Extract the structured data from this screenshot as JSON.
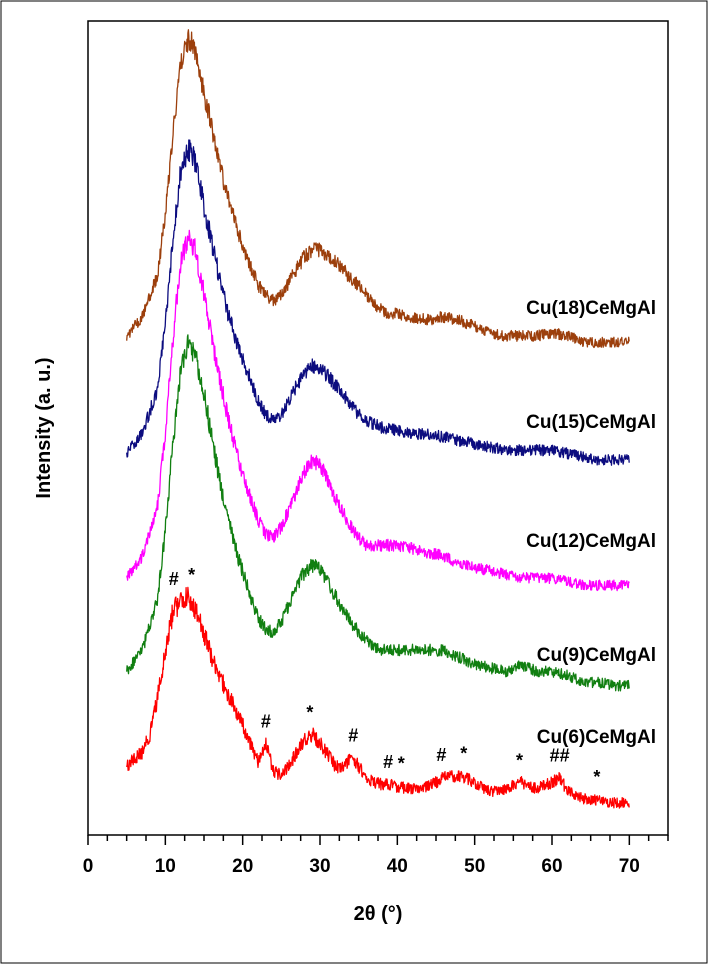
{
  "chart_data": {
    "type": "line",
    "title": "",
    "xlabel": "2θ (°)",
    "ylabel": "Intensity (a. u.)",
    "xlim": [
      0,
      75
    ],
    "x_ticks": [
      "0",
      "10",
      "20",
      "30",
      "40",
      "50",
      "60",
      "70"
    ],
    "y_ticks": "none",
    "grid": false,
    "legend": "none (series labelled directly on plot)",
    "series": [
      {
        "name": "Cu(18)CeMgAl",
        "color": "#9c3f0c",
        "points": [
          [
            5,
            0.06
          ],
          [
            7,
            0.12
          ],
          [
            9,
            0.25
          ],
          [
            10,
            0.45
          ],
          [
            11,
            0.7
          ],
          [
            12,
            0.92
          ],
          [
            13,
            1.0
          ],
          [
            14,
            0.95
          ],
          [
            15,
            0.82
          ],
          [
            16,
            0.72
          ],
          [
            17,
            0.6
          ],
          [
            18,
            0.5
          ],
          [
            19,
            0.42
          ],
          [
            20,
            0.34
          ],
          [
            21,
            0.28
          ],
          [
            22,
            0.22
          ],
          [
            23,
            0.19
          ],
          [
            24,
            0.17
          ],
          [
            25,
            0.19
          ],
          [
            26,
            0.23
          ],
          [
            27,
            0.27
          ],
          [
            28,
            0.31
          ],
          [
            29,
            0.33
          ],
          [
            30,
            0.33
          ],
          [
            31,
            0.31
          ],
          [
            32,
            0.29
          ],
          [
            33,
            0.27
          ],
          [
            34,
            0.24
          ],
          [
            35,
            0.22
          ],
          [
            36,
            0.19
          ],
          [
            37,
            0.16
          ],
          [
            38,
            0.14
          ],
          [
            39,
            0.13
          ],
          [
            40,
            0.13
          ],
          [
            42,
            0.12
          ],
          [
            44,
            0.11
          ],
          [
            46,
            0.12
          ],
          [
            48,
            0.11
          ],
          [
            50,
            0.09
          ],
          [
            52,
            0.07
          ],
          [
            54,
            0.06
          ],
          [
            56,
            0.06
          ],
          [
            58,
            0.06
          ],
          [
            60,
            0.07
          ],
          [
            62,
            0.06
          ],
          [
            64,
            0.04
          ],
          [
            66,
            0.04
          ],
          [
            68,
            0.04
          ],
          [
            70,
            0.04
          ]
        ]
      },
      {
        "name": "Cu(15)CeMgAl",
        "color": "#0c0c7f",
        "points": [
          [
            5,
            0.06
          ],
          [
            7,
            0.12
          ],
          [
            9,
            0.26
          ],
          [
            10,
            0.46
          ],
          [
            11,
            0.72
          ],
          [
            12,
            0.93
          ],
          [
            13,
            1.0
          ],
          [
            14,
            0.95
          ],
          [
            15,
            0.82
          ],
          [
            16,
            0.71
          ],
          [
            17,
            0.6
          ],
          [
            18,
            0.5
          ],
          [
            19,
            0.42
          ],
          [
            20,
            0.35
          ],
          [
            21,
            0.29
          ],
          [
            22,
            0.22
          ],
          [
            23,
            0.18
          ],
          [
            24,
            0.16
          ],
          [
            25,
            0.18
          ],
          [
            26,
            0.22
          ],
          [
            27,
            0.27
          ],
          [
            28,
            0.31
          ],
          [
            29,
            0.33
          ],
          [
            30,
            0.32
          ],
          [
            31,
            0.3
          ],
          [
            32,
            0.27
          ],
          [
            33,
            0.24
          ],
          [
            34,
            0.21
          ],
          [
            35,
            0.18
          ],
          [
            36,
            0.16
          ],
          [
            37,
            0.15
          ],
          [
            38,
            0.14
          ],
          [
            40,
            0.13
          ],
          [
            42,
            0.12
          ],
          [
            44,
            0.12
          ],
          [
            46,
            0.11
          ],
          [
            48,
            0.1
          ],
          [
            50,
            0.09
          ],
          [
            52,
            0.08
          ],
          [
            54,
            0.07
          ],
          [
            56,
            0.07
          ],
          [
            58,
            0.07
          ],
          [
            60,
            0.07
          ],
          [
            62,
            0.06
          ],
          [
            64,
            0.05
          ],
          [
            66,
            0.04
          ],
          [
            68,
            0.04
          ],
          [
            70,
            0.04
          ]
        ]
      },
      {
        "name": "Cu(12)CeMgAl",
        "color": "#ff00ff",
        "points": [
          [
            5,
            0.06
          ],
          [
            7,
            0.12
          ],
          [
            9,
            0.26
          ],
          [
            10,
            0.46
          ],
          [
            11,
            0.72
          ],
          [
            12,
            0.93
          ],
          [
            13,
            1.0
          ],
          [
            14,
            0.95
          ],
          [
            15,
            0.84
          ],
          [
            16,
            0.72
          ],
          [
            17,
            0.61
          ],
          [
            18,
            0.51
          ],
          [
            19,
            0.42
          ],
          [
            20,
            0.34
          ],
          [
            21,
            0.28
          ],
          [
            22,
            0.22
          ],
          [
            23,
            0.18
          ],
          [
            24,
            0.17
          ],
          [
            25,
            0.2
          ],
          [
            26,
            0.25
          ],
          [
            27,
            0.3
          ],
          [
            28,
            0.35
          ],
          [
            29,
            0.38
          ],
          [
            30,
            0.37
          ],
          [
            31,
            0.33
          ],
          [
            32,
            0.28
          ],
          [
            33,
            0.24
          ],
          [
            34,
            0.2
          ],
          [
            35,
            0.17
          ],
          [
            36,
            0.15
          ],
          [
            38,
            0.15
          ],
          [
            40,
            0.15
          ],
          [
            42,
            0.14
          ],
          [
            44,
            0.13
          ],
          [
            46,
            0.12
          ],
          [
            48,
            0.1
          ],
          [
            50,
            0.09
          ],
          [
            52,
            0.08
          ],
          [
            54,
            0.07
          ],
          [
            56,
            0.06
          ],
          [
            58,
            0.06
          ],
          [
            60,
            0.06
          ],
          [
            62,
            0.05
          ],
          [
            64,
            0.04
          ],
          [
            66,
            0.04
          ],
          [
            68,
            0.04
          ],
          [
            70,
            0.04
          ]
        ]
      },
      {
        "name": "Cu(9)CeMgAl",
        "color": "#117f11",
        "points": [
          [
            5,
            0.08
          ],
          [
            7,
            0.14
          ],
          [
            9,
            0.28
          ],
          [
            10,
            0.48
          ],
          [
            11,
            0.72
          ],
          [
            12,
            0.93
          ],
          [
            13,
            1.0
          ],
          [
            14,
            0.96
          ],
          [
            15,
            0.86
          ],
          [
            16,
            0.74
          ],
          [
            17,
            0.62
          ],
          [
            18,
            0.52
          ],
          [
            19,
            0.43
          ],
          [
            20,
            0.36
          ],
          [
            21,
            0.29
          ],
          [
            22,
            0.23
          ],
          [
            23,
            0.2
          ],
          [
            24,
            0.19
          ],
          [
            25,
            0.22
          ],
          [
            26,
            0.27
          ],
          [
            27,
            0.32
          ],
          [
            28,
            0.36
          ],
          [
            29,
            0.38
          ],
          [
            30,
            0.37
          ],
          [
            31,
            0.33
          ],
          [
            32,
            0.29
          ],
          [
            33,
            0.25
          ],
          [
            34,
            0.22
          ],
          [
            35,
            0.19
          ],
          [
            36,
            0.17
          ],
          [
            37,
            0.15
          ],
          [
            38,
            0.14
          ],
          [
            40,
            0.14
          ],
          [
            42,
            0.14
          ],
          [
            44,
            0.14
          ],
          [
            46,
            0.14
          ],
          [
            48,
            0.12
          ],
          [
            50,
            0.1
          ],
          [
            52,
            0.09
          ],
          [
            54,
            0.08
          ],
          [
            56,
            0.1
          ],
          [
            58,
            0.08
          ],
          [
            60,
            0.08
          ],
          [
            62,
            0.07
          ],
          [
            64,
            0.05
          ],
          [
            66,
            0.05
          ],
          [
            68,
            0.04
          ],
          [
            70,
            0.04
          ]
        ]
      },
      {
        "name": "Cu(6)CeMgAl",
        "color": "#ff0000",
        "points": [
          [
            5,
            0.2
          ],
          [
            7,
            0.26
          ],
          [
            8,
            0.34
          ],
          [
            9,
            0.5
          ],
          [
            10,
            0.7
          ],
          [
            11,
            0.88
          ],
          [
            12,
            0.92
          ],
          [
            13,
            0.94
          ],
          [
            14,
            0.88
          ],
          [
            15,
            0.78
          ],
          [
            16,
            0.68
          ],
          [
            17,
            0.6
          ],
          [
            18,
            0.52
          ],
          [
            19,
            0.45
          ],
          [
            20,
            0.38
          ],
          [
            21,
            0.3
          ],
          [
            22,
            0.22
          ],
          [
            23,
            0.3
          ],
          [
            24,
            0.18
          ],
          [
            25,
            0.16
          ],
          [
            26,
            0.2
          ],
          [
            27,
            0.26
          ],
          [
            28,
            0.32
          ],
          [
            29,
            0.34
          ],
          [
            30,
            0.3
          ],
          [
            31,
            0.25
          ],
          [
            32,
            0.2
          ],
          [
            33,
            0.19
          ],
          [
            34,
            0.24
          ],
          [
            35,
            0.2
          ],
          [
            36,
            0.15
          ],
          [
            37,
            0.13
          ],
          [
            38,
            0.12
          ],
          [
            39,
            0.12
          ],
          [
            40,
            0.11
          ],
          [
            42,
            0.1
          ],
          [
            44,
            0.11
          ],
          [
            46,
            0.15
          ],
          [
            48,
            0.16
          ],
          [
            50,
            0.13
          ],
          [
            52,
            0.09
          ],
          [
            54,
            0.1
          ],
          [
            56,
            0.13
          ],
          [
            58,
            0.1
          ],
          [
            60,
            0.13
          ],
          [
            61,
            0.15
          ],
          [
            62,
            0.09
          ],
          [
            64,
            0.06
          ],
          [
            66,
            0.05
          ],
          [
            68,
            0.04
          ],
          [
            70,
            0.04
          ]
        ]
      }
    ],
    "annotations": [
      {
        "text": "#",
        "x": 11.1,
        "series": "Cu(6)CeMgAl"
      },
      {
        "text": "*",
        "x": 13.4,
        "series": "Cu(6)CeMgAl"
      },
      {
        "text": "#",
        "x": 23.0,
        "series": "Cu(6)CeMgAl"
      },
      {
        "text": "*",
        "x": 28.7,
        "series": "Cu(6)CeMgAl"
      },
      {
        "text": "#",
        "x": 34.3,
        "series": "Cu(6)CeMgAl"
      },
      {
        "text": "#",
        "x": 38.8,
        "series": "Cu(6)CeMgAl"
      },
      {
        "text": "*",
        "x": 40.5,
        "series": "Cu(6)CeMgAl"
      },
      {
        "text": "#",
        "x": 45.7,
        "series": "Cu(6)CeMgAl"
      },
      {
        "text": "*",
        "x": 48.6,
        "series": "Cu(6)CeMgAl"
      },
      {
        "text": "*",
        "x": 55.8,
        "series": "Cu(6)CeMgAl"
      },
      {
        "text": "##",
        "x": 61.0,
        "series": "Cu(6)CeMgAl"
      },
      {
        "text": "*",
        "x": 65.8,
        "series": "Cu(6)CeMgAl"
      }
    ]
  }
}
